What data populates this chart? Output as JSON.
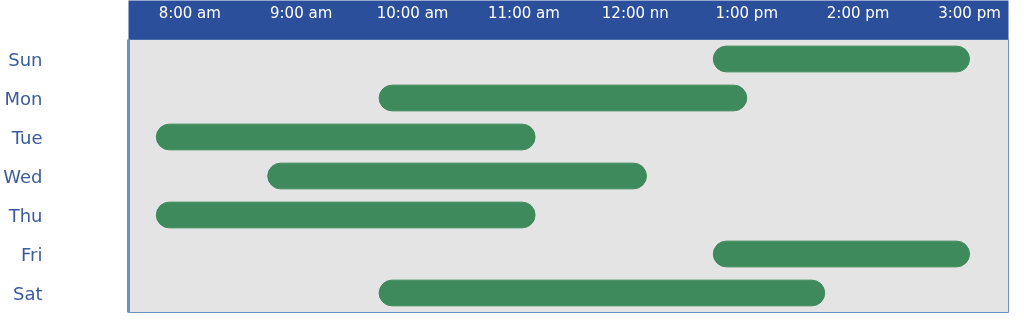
{
  "chart_data": {
    "type": "bar",
    "orientation": "horizontal",
    "categories": [
      "Sun",
      "Mon",
      "Tue",
      "Wed",
      "Thu",
      "Fri",
      "Sat"
    ],
    "base": [
      12.7,
      9.7,
      7.7,
      8.7,
      7.7,
      12.7,
      9.7
    ],
    "values": [
      2.3,
      3.3,
      3.4,
      3.4,
      3.4,
      2.3,
      4.0
    ],
    "color": "#3f8a5c",
    "xlim": [
      7.45,
      15.35
    ],
    "xticks": [
      {
        "value": 8,
        "label": "8:00 am"
      },
      {
        "value": 9,
        "label": "9:00 am"
      },
      {
        "value": 10,
        "label": "10:00 am"
      },
      {
        "value": 11,
        "label": "11:00 am"
      },
      {
        "value": 12,
        "label": "12:00 nn"
      },
      {
        "value": 13,
        "label": "1:00 pm"
      },
      {
        "value": 14,
        "label": "2:00 pm"
      },
      {
        "value": 15,
        "label": "3:00 pm"
      }
    ],
    "grid": false
  }
}
